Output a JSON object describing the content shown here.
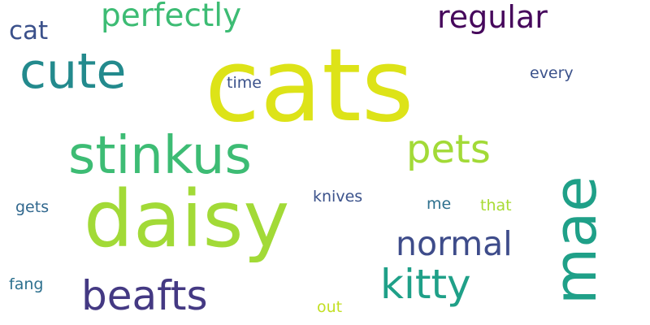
{
  "words": [
    {
      "text": "cats",
      "weight": 1.0,
      "orientation": "horizontal",
      "color": "#dde318"
    },
    {
      "text": "daisy",
      "weight": 0.78,
      "orientation": "horizontal",
      "color": "#a2da37"
    },
    {
      "text": "mae",
      "weight": 0.55,
      "orientation": "vertical",
      "color": "#1fa088"
    },
    {
      "text": "stinkus",
      "weight": 0.52,
      "orientation": "horizontal",
      "color": "#3dbc74"
    },
    {
      "text": "cute",
      "weight": 0.48,
      "orientation": "horizontal",
      "color": "#238a8d"
    },
    {
      "text": "kitty",
      "weight": 0.4,
      "orientation": "horizontal",
      "color": "#1fa088"
    },
    {
      "text": "beafts",
      "weight": 0.4,
      "orientation": "horizontal",
      "color": "#443983"
    },
    {
      "text": "pets",
      "weight": 0.38,
      "orientation": "horizontal",
      "color": "#a2da37"
    },
    {
      "text": "normal",
      "weight": 0.33,
      "orientation": "horizontal",
      "color": "#3e4c8a"
    },
    {
      "text": "perfectly",
      "weight": 0.31,
      "orientation": "horizontal",
      "color": "#3dbc74"
    },
    {
      "text": "regular",
      "weight": 0.3,
      "orientation": "horizontal",
      "color": "#46085c"
    },
    {
      "text": "cat",
      "weight": 0.24,
      "orientation": "horizontal",
      "color": "#3b518b"
    },
    {
      "text": "every",
      "weight": 0.15,
      "orientation": "horizontal",
      "color": "#3b528b"
    },
    {
      "text": "time",
      "weight": 0.15,
      "orientation": "horizontal",
      "color": "#3b528b"
    },
    {
      "text": "that",
      "weight": 0.15,
      "orientation": "horizontal",
      "color": "#a8db34"
    },
    {
      "text": "gets",
      "weight": 0.15,
      "orientation": "horizontal",
      "color": "#31688e"
    },
    {
      "text": "knives",
      "weight": 0.15,
      "orientation": "horizontal",
      "color": "#3b528b"
    },
    {
      "text": "me",
      "weight": 0.15,
      "orientation": "horizontal",
      "color": "#2d708e"
    },
    {
      "text": "fang",
      "weight": 0.15,
      "orientation": "horizontal",
      "color": "#2d708e"
    },
    {
      "text": "out",
      "weight": 0.15,
      "orientation": "horizontal",
      "color": "#c2df23"
    }
  ]
}
